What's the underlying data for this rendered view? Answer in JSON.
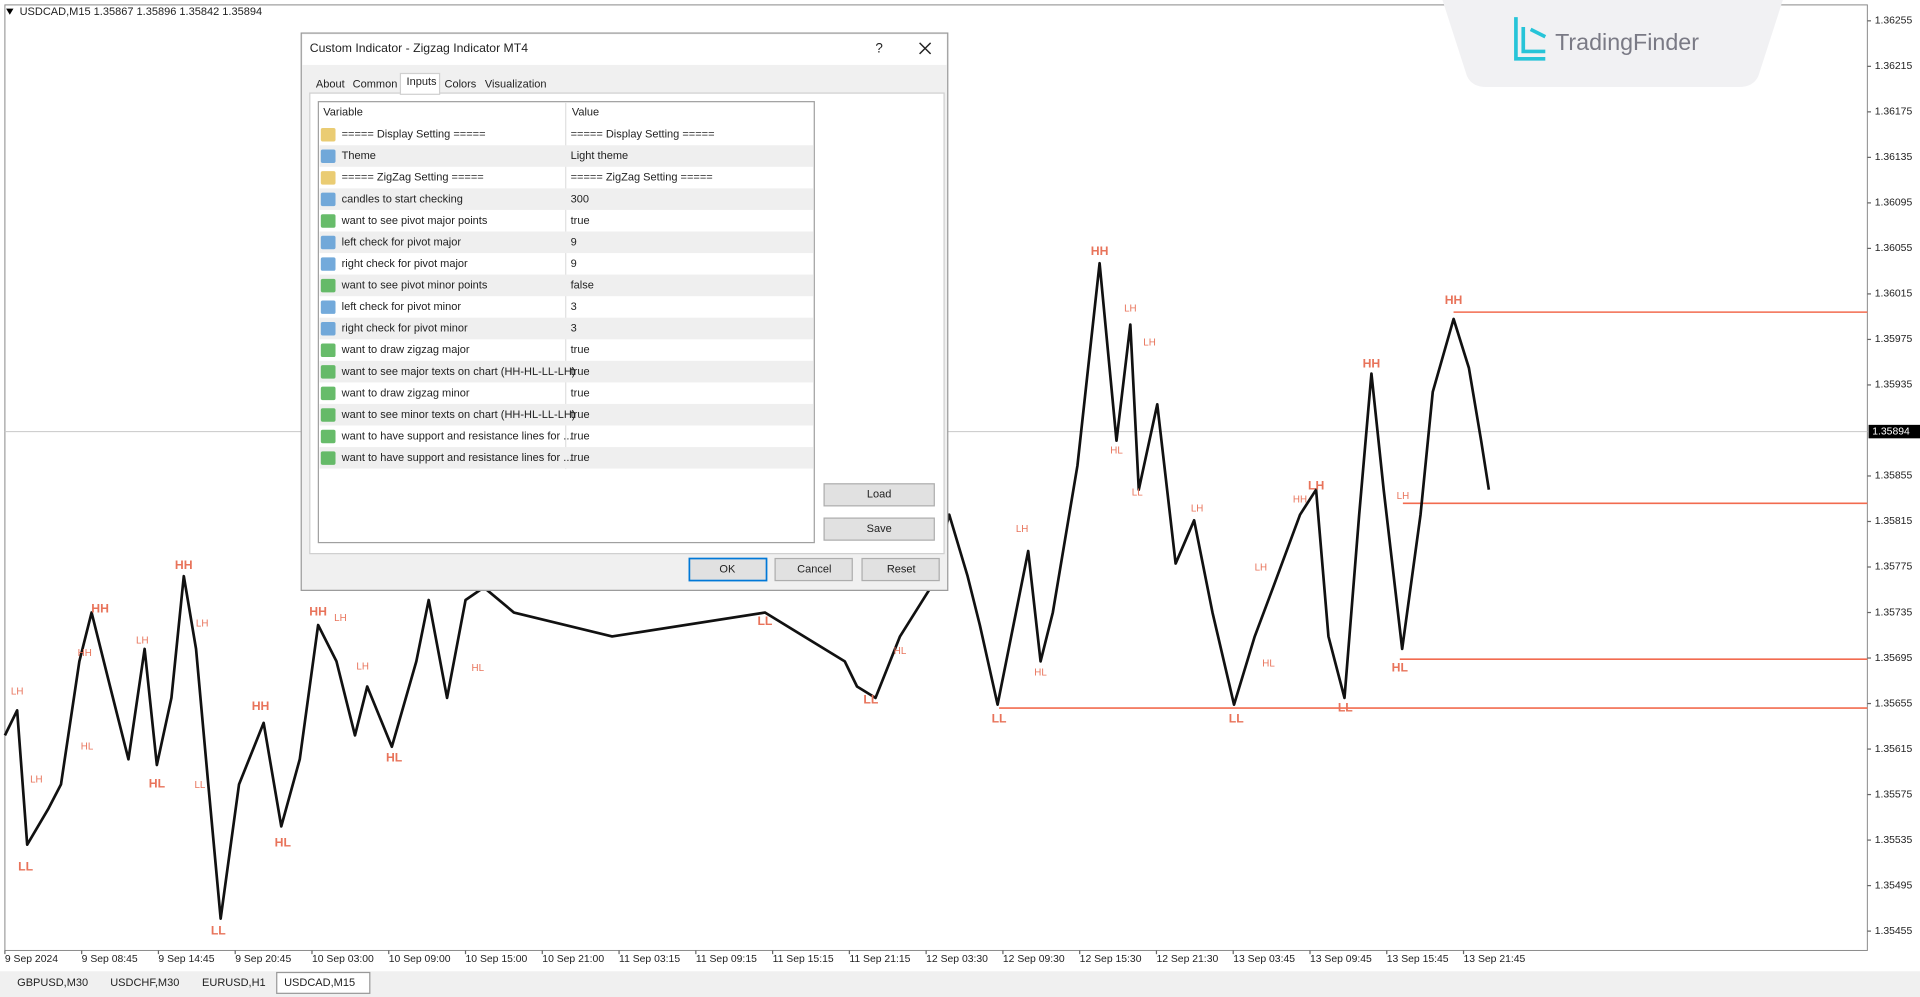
{
  "window": {
    "symbol_info": "USDCAD,M15  1.35867 1.35896 1.35842 1.35894",
    "logo": "TradingFinder",
    "tabs": [
      "GBPUSD,M30",
      "USDCHF,M30",
      "EURUSD,H1",
      "USDCAD,M15"
    ]
  },
  "chart_data": {
    "type": "line",
    "xlim": [
      0,
      24.26
    ],
    "ylim": [
      1.35438,
      1.36269
    ],
    "yticks": [
      1.36255,
      1.36215,
      1.36175,
      1.36135,
      1.36095,
      1.36055,
      1.36015,
      1.35975,
      1.35935,
      1.35855,
      1.35815,
      1.35775,
      1.35735,
      1.35695,
      1.35655,
      1.35615,
      1.35575,
      1.35535,
      1.35495,
      1.35455
    ],
    "xticks": [
      {
        "value": 0,
        "label": "9 Sep 2024"
      },
      {
        "value": 1,
        "label": "9 Sep 08:45"
      },
      {
        "value": 2,
        "label": "9 Sep 14:45"
      },
      {
        "value": 3,
        "label": "9 Sep 20:45"
      },
      {
        "value": 4,
        "label": "10 Sep 03:00"
      },
      {
        "value": 5,
        "label": "10 Sep 09:00"
      },
      {
        "value": 6,
        "label": "10 Sep 15:00"
      },
      {
        "value": 7,
        "label": "10 Sep 21:00"
      },
      {
        "value": 8,
        "label": "11 Sep 03:15"
      },
      {
        "value": 9,
        "label": "11 Sep 09:15"
      },
      {
        "value": 10,
        "label": "11 Sep 15:15"
      },
      {
        "value": 11,
        "label": "11 Sep 21:15"
      },
      {
        "value": 12,
        "label": "12 Sep 03:30"
      },
      {
        "value": 13,
        "label": "12 Sep 09:30"
      },
      {
        "value": 14,
        "label": "12 Sep 15:30"
      },
      {
        "value": 15,
        "label": "12 Sep 21:30"
      },
      {
        "value": 16,
        "label": "13 Sep 03:45"
      },
      {
        "value": 17,
        "label": "13 Sep 09:45"
      },
      {
        "value": 18,
        "label": "13 Sep 15:45"
      },
      {
        "value": 19,
        "label": "13 Sep 21:45"
      }
    ],
    "current_price": 1.35894,
    "series": [
      {
        "color": "#111111",
        "x": [
          0,
          0.16,
          0.29,
          0.57,
          0.73,
          0.97,
          1.13,
          1.37,
          1.61,
          1.82,
          1.98,
          2.17,
          2.33,
          2.49,
          2.65,
          2.81,
          3.05,
          3.37,
          3.6,
          3.84,
          4.08,
          4.32,
          4.56,
          4.72,
          5.04,
          5.36,
          5.52,
          5.76,
          6.0,
          6.24,
          6.63,
          7.91,
          9.9,
          10.94,
          11.1,
          11.34,
          11.66,
          12.06,
          12.3,
          12.54,
          12.7,
          12.93,
          13.17,
          13.33,
          13.49,
          13.65,
          13.97,
          14.26,
          14.48,
          14.66,
          14.77,
          15.01,
          15.25,
          15.49,
          15.73,
          16.01,
          16.28,
          16.52,
          16.87,
          17.08,
          17.24,
          17.45,
          17.64,
          17.8,
          17.96,
          18.2,
          18.44,
          18.6,
          18.87,
          19.07,
          19.23,
          19.33
        ],
        "values": [
          1.35627,
          1.35649,
          1.35531,
          1.35563,
          1.35584,
          1.35692,
          1.35735,
          1.3567,
          1.35606,
          1.35703,
          1.35601,
          1.3566,
          1.35767,
          1.35703,
          1.35584,
          1.35466,
          1.35584,
          1.35638,
          1.35547,
          1.35606,
          1.35724,
          1.35692,
          1.35627,
          1.3567,
          1.35617,
          1.35692,
          1.35746,
          1.3566,
          1.35746,
          1.35757,
          1.35735,
          1.35714,
          1.35735,
          1.35692,
          1.3567,
          1.3566,
          1.35714,
          1.35757,
          1.35821,
          1.35767,
          1.35724,
          1.35654,
          1.35735,
          1.35789,
          1.35692,
          1.35735,
          1.35864,
          1.36042,
          1.35886,
          1.35988,
          1.35843,
          1.35918,
          1.35778,
          1.35816,
          1.35735,
          1.35654,
          1.35714,
          1.35757,
          1.35821,
          1.35843,
          1.35714,
          1.3566,
          1.35821,
          1.35945,
          1.35843,
          1.35703,
          1.35821,
          1.35929,
          1.35993,
          1.3595,
          1.35886,
          1.35843
        ]
      }
    ],
    "pivot_color": "#e8735a",
    "pivots_major": [
      {
        "label": "LL",
        "x": 0.27,
        "y": 1.35511
      },
      {
        "label": "HH",
        "x": 1.24,
        "y": 1.35738
      },
      {
        "label": "HL",
        "x": 1.98,
        "y": 1.35584
      },
      {
        "label": "HH",
        "x": 2.33,
        "y": 1.35776
      },
      {
        "label": "LL",
        "x": 2.78,
        "y": 1.35455
      },
      {
        "label": "HH",
        "x": 3.33,
        "y": 1.35652
      },
      {
        "label": "HL",
        "x": 3.62,
        "y": 1.35532
      },
      {
        "label": "HH",
        "x": 4.08,
        "y": 1.35735
      },
      {
        "label": "HL",
        "x": 5.07,
        "y": 1.35607
      },
      {
        "label": "LL",
        "x": 9.9,
        "y": 1.35727
      },
      {
        "label": "LL",
        "x": 11.28,
        "y": 1.35658
      },
      {
        "label": "LL",
        "x": 12.95,
        "y": 1.35641
      },
      {
        "label": "HH",
        "x": 14.26,
        "y": 1.36052
      },
      {
        "label": "LL",
        "x": 16.04,
        "y": 1.35641
      },
      {
        "label": "LH",
        "x": 17.08,
        "y": 1.35846
      },
      {
        "label": "LL",
        "x": 17.46,
        "y": 1.35651
      },
      {
        "label": "HH",
        "x": 17.8,
        "y": 1.35953
      },
      {
        "label": "HL",
        "x": 18.17,
        "y": 1.35686
      },
      {
        "label": "HH",
        "x": 18.87,
        "y": 1.36009
      }
    ],
    "pivots_minor": [
      {
        "label": "LH",
        "x": 0.16,
        "y": 1.35665
      },
      {
        "label": "LH",
        "x": 0.41,
        "y": 1.35588
      },
      {
        "label": "HH",
        "x": 1.04,
        "y": 1.35699
      },
      {
        "label": "HL",
        "x": 1.07,
        "y": 1.35617
      },
      {
        "label": "LH",
        "x": 1.79,
        "y": 1.3571
      },
      {
        "label": "LH",
        "x": 2.57,
        "y": 1.35725
      },
      {
        "label": "LL",
        "x": 2.54,
        "y": 1.35583
      },
      {
        "label": "LH",
        "x": 4.37,
        "y": 1.3573
      },
      {
        "label": "LH",
        "x": 4.66,
        "y": 1.35687
      },
      {
        "label": "HL",
        "x": 6.16,
        "y": 1.35686
      },
      {
        "label": "HL",
        "x": 11.66,
        "y": 1.35701
      },
      {
        "label": "LH",
        "x": 13.25,
        "y": 1.35808
      },
      {
        "label": "HL",
        "x": 13.49,
        "y": 1.35682
      },
      {
        "label": "LH",
        "x": 14.66,
        "y": 1.36002
      },
      {
        "label": "LH",
        "x": 14.91,
        "y": 1.35972
      },
      {
        "label": "HL",
        "x": 14.48,
        "y": 1.35877
      },
      {
        "label": "LL",
        "x": 14.75,
        "y": 1.3584
      },
      {
        "label": "LH",
        "x": 15.53,
        "y": 1.35826
      },
      {
        "label": "LH",
        "x": 16.36,
        "y": 1.35774
      },
      {
        "label": "HL",
        "x": 16.46,
        "y": 1.3569
      },
      {
        "label": "HH",
        "x": 16.87,
        "y": 1.35834
      },
      {
        "label": "LH",
        "x": 18.21,
        "y": 1.35837
      }
    ],
    "levels_color": "#f26b4f",
    "levels": [
      {
        "x": 18.87,
        "y": 1.35999
      },
      {
        "x": 18.21,
        "y": 1.35831
      },
      {
        "x": 18.17,
        "y": 1.35694
      },
      {
        "x": 12.95,
        "y": 1.35651
      }
    ]
  },
  "dialog": {
    "title": "Custom Indicator - Zigzag Indicator MT4",
    "help": "?",
    "tabs": [
      "About",
      "Common",
      "Inputs",
      "Colors",
      "Visualization"
    ],
    "table": {
      "header": [
        "Variable",
        "Value"
      ],
      "rows": [
        [
          "===== Display Setting =====",
          "===== Display Setting ====="
        ],
        [
          "Theme",
          "Light theme"
        ],
        [
          "===== ZigZag Setting =====",
          "===== ZigZag Setting ====="
        ],
        [
          "candles to start checking",
          "300"
        ],
        [
          "want to see pivot major points",
          "true"
        ],
        [
          "left check for pivot major",
          "9"
        ],
        [
          "right check for pivot major",
          "9"
        ],
        [
          "want to see pivot minor points",
          "false"
        ],
        [
          "left check for pivot minor",
          "3"
        ],
        [
          "right check for pivot minor",
          "3"
        ],
        [
          "want to draw zigzag major",
          "true"
        ],
        [
          "want to see major texts on chart (HH-HL-LL-LH)",
          "true"
        ],
        [
          "want to draw zigzag minor",
          "true"
        ],
        [
          "want to see minor texts on chart (HH-HL-LL-LH)",
          "true"
        ],
        [
          "want to have support and resistance lines for ...",
          "true"
        ],
        [
          "want to have support and resistance lines for ...",
          "true"
        ]
      ]
    },
    "buttons": {
      "load": "Load",
      "save": "Save",
      "ok": "OK",
      "cancel": "Cancel",
      "reset": "Reset"
    }
  }
}
